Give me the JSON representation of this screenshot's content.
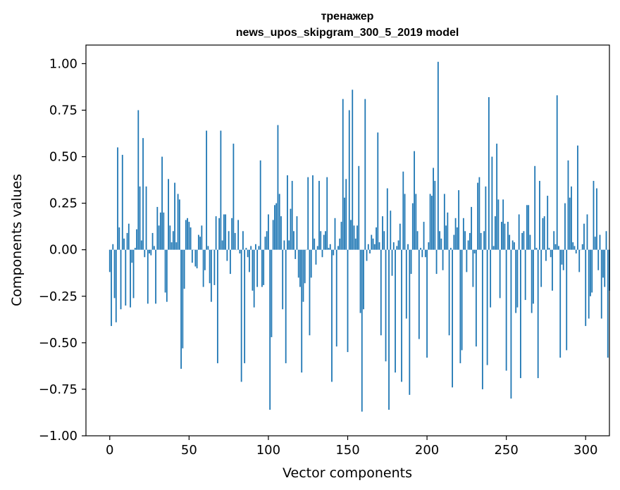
{
  "chart_data": {
    "type": "bar",
    "title_line1": "тренажер",
    "title_line2": "news_upos_skipgram_300_5_2019 model",
    "xlabel": "Vector components",
    "ylabel": "Components values",
    "xlim": [
      -15,
      315
    ],
    "ylim": [
      -1.0,
      1.1
    ],
    "xticks": [
      0,
      50,
      100,
      150,
      200,
      250,
      300
    ],
    "xtick_labels": [
      "0",
      "50",
      "100",
      "150",
      "200",
      "250",
      "300"
    ],
    "yticks": [
      -1.0,
      -0.75,
      -0.5,
      -0.25,
      0.0,
      0.25,
      0.5,
      0.75,
      1.0
    ],
    "ytick_labels": [
      "−1.00",
      "−0.75",
      "−0.50",
      "−0.25",
      "0.00",
      "0.25",
      "0.50",
      "0.75",
      "1.00"
    ],
    "bar_color": "#1f77b4",
    "values": [
      -0.12,
      -0.41,
      0.03,
      -0.26,
      -0.39,
      0.55,
      0.12,
      -0.32,
      0.51,
      0.06,
      -0.3,
      0.09,
      0.14,
      -0.31,
      -0.07,
      -0.26,
      0.01,
      0.11,
      0.75,
      0.34,
      0.05,
      0.6,
      -0.04,
      0.34,
      -0.29,
      -0.02,
      -0.03,
      0.09,
      0.02,
      -0.29,
      0.23,
      0.13,
      0.2,
      0.5,
      0.2,
      -0.23,
      -0.28,
      0.38,
      0.13,
      0.04,
      0.1,
      0.36,
      0.04,
      0.3,
      0.27,
      -0.64,
      -0.53,
      -0.21,
      0.16,
      0.17,
      0.15,
      0.12,
      -0.07,
      0.0,
      -0.09,
      -0.1,
      0.08,
      0.07,
      0.13,
      -0.2,
      -0.11,
      0.64,
      0.02,
      -0.18,
      -0.28,
      0.0,
      -0.19,
      0.18,
      -0.61,
      0.17,
      0.64,
      0.05,
      0.19,
      0.19,
      -0.06,
      0.1,
      -0.13,
      0.17,
      0.57,
      0.09,
      0.0,
      0.16,
      -0.02,
      -0.71,
      0.1,
      -0.61,
      0.01,
      -0.04,
      -0.12,
      0.02,
      -0.22,
      -0.31,
      0.03,
      -0.2,
      0.02,
      0.48,
      -0.2,
      -0.19,
      0.07,
      0.1,
      0.19,
      -0.86,
      -0.47,
      0.16,
      0.24,
      0.25,
      0.67,
      0.3,
      0.18,
      -0.32,
      0.05,
      -0.61,
      0.4,
      0.05,
      0.22,
      0.37,
      0.1,
      -0.05,
      0.18,
      -0.15,
      -0.2,
      -0.66,
      -0.28,
      -0.18,
      0.0,
      0.39,
      -0.46,
      -0.15,
      0.4,
      0.06,
      -0.08,
      0.02,
      0.37,
      0.1,
      -0.04,
      0.08,
      0.1,
      0.39,
      0.01,
      0.03,
      -0.71,
      -0.03,
      0.17,
      -0.52,
      0.02,
      0.06,
      0.15,
      0.81,
      0.28,
      0.38,
      -0.55,
      0.75,
      0.16,
      0.86,
      0.13,
      0.06,
      0.13,
      0.45,
      -0.34,
      -0.87,
      -0.32,
      0.81,
      -0.06,
      0.03,
      -0.02,
      0.08,
      0.06,
      0.03,
      0.12,
      0.63,
      0.04,
      -0.46,
      0.18,
      0.1,
      -0.6,
      0.33,
      -0.86,
      0.21,
      -0.14,
      0.04,
      -0.66,
      0.02,
      0.05,
      0.14,
      -0.71,
      0.42,
      0.3,
      -0.37,
      0.03,
      -0.78,
      -0.13,
      0.25,
      0.53,
      0.3,
      0.1,
      -0.48,
      0.01,
      -0.04,
      0.15,
      -0.04,
      -0.58,
      0.04,
      0.3,
      0.29,
      0.44,
      0.37,
      -0.13,
      1.01,
      0.1,
      0.06,
      -0.11,
      0.3,
      0.13,
      0.2,
      -0.46,
      0.01,
      -0.74,
      0.08,
      0.17,
      0.12,
      0.32,
      -0.61,
      -0.54,
      0.17,
      0.1,
      -0.12,
      0.05,
      0.09,
      0.23,
      -0.2,
      -0.02,
      -0.52,
      0.36,
      0.39,
      0.09,
      -0.75,
      0.1,
      0.34,
      -0.62,
      0.82,
      -0.31,
      0.5,
      0.02,
      0.18,
      0.57,
      0.27,
      -0.26,
      0.15,
      0.27,
      0.14,
      -0.65,
      0.15,
      0.08,
      -0.8,
      0.05,
      0.04,
      -0.34,
      -0.31,
      0.19,
      -0.69,
      0.09,
      0.1,
      -0.27,
      0.24,
      0.24,
      0.08,
      -0.34,
      -0.29,
      0.45,
      0.01,
      -0.69,
      0.37,
      -0.2,
      0.17,
      0.18,
      -0.06,
      0.29,
      0.01,
      -0.04,
      -0.22,
      0.1,
      0.03,
      0.83,
      0.02,
      -0.58,
      -0.08,
      -0.11,
      0.25,
      -0.54,
      0.48,
      0.28,
      0.34,
      0.04,
      0.02,
      -0.02,
      0.56,
      -0.12,
      0.0,
      0.03,
      0.14,
      -0.41,
      0.19,
      -0.37,
      -0.25,
      -0.23,
      0.37,
      0.07,
      0.33,
      -0.11,
      0.08,
      -0.37,
      -0.15,
      -0.2,
      0.1,
      -0.58,
      -0.22
    ]
  }
}
